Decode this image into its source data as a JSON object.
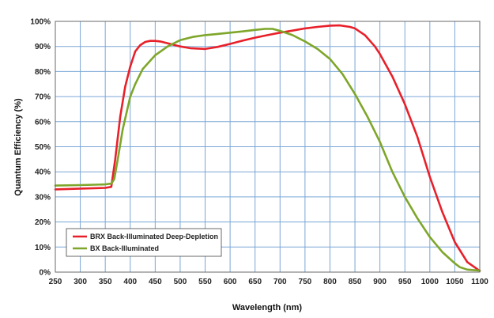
{
  "chart_data": {
    "type": "line",
    "title": "",
    "xlabel": "Wavelength (nm)",
    "ylabel": "Quantum Efficiency (%)",
    "xlim": [
      250,
      1100
    ],
    "ylim": [
      0,
      100
    ],
    "x_ticks": [
      250,
      300,
      350,
      400,
      450,
      500,
      550,
      600,
      650,
      700,
      750,
      800,
      850,
      900,
      950,
      1000,
      1050,
      1100
    ],
    "y_ticks": [
      0,
      10,
      20,
      30,
      40,
      50,
      60,
      70,
      80,
      90,
      100
    ],
    "y_tick_labels": [
      "0%",
      "10%",
      "20%",
      "30%",
      "40%",
      "50%",
      "60%",
      "70%",
      "80%",
      "90%",
      "100%"
    ],
    "grid": "vertical lines at every x tick; horizontal lines at every y tick",
    "legend_position": "bottom-left",
    "series": [
      {
        "name": "BRX Back-Illuminated Deep-Depletion",
        "color": "#e8202a",
        "points": [
          [
            250,
            33
          ],
          [
            300,
            33.3
          ],
          [
            350,
            33.6
          ],
          [
            362,
            34
          ],
          [
            370,
            45
          ],
          [
            380,
            62
          ],
          [
            390,
            74
          ],
          [
            400,
            82
          ],
          [
            410,
            88
          ],
          [
            420,
            90.5
          ],
          [
            430,
            91.8
          ],
          [
            440,
            92.2
          ],
          [
            450,
            92.2
          ],
          [
            460,
            92
          ],
          [
            480,
            91
          ],
          [
            500,
            90
          ],
          [
            520,
            89.3
          ],
          [
            550,
            89
          ],
          [
            575,
            89.8
          ],
          [
            600,
            91
          ],
          [
            625,
            92.3
          ],
          [
            650,
            93.5
          ],
          [
            675,
            94.5
          ],
          [
            700,
            95.5
          ],
          [
            725,
            96.3
          ],
          [
            750,
            97.2
          ],
          [
            775,
            97.8
          ],
          [
            800,
            98.3
          ],
          [
            820,
            98.4
          ],
          [
            840,
            97.8
          ],
          [
            850,
            97.2
          ],
          [
            870,
            94.5
          ],
          [
            890,
            90
          ],
          [
            900,
            87
          ],
          [
            925,
            78
          ],
          [
            950,
            67
          ],
          [
            975,
            54
          ],
          [
            1000,
            38
          ],
          [
            1025,
            24
          ],
          [
            1050,
            12
          ],
          [
            1075,
            4
          ],
          [
            1100,
            0.5
          ]
        ]
      },
      {
        "name": "BX Back-Illuminated",
        "color": "#7ea62a",
        "points": [
          [
            250,
            34.5
          ],
          [
            300,
            34.7
          ],
          [
            350,
            35
          ],
          [
            362,
            35.3
          ],
          [
            368,
            37
          ],
          [
            375,
            45
          ],
          [
            385,
            57
          ],
          [
            400,
            70
          ],
          [
            410,
            75
          ],
          [
            425,
            81
          ],
          [
            450,
            86.5
          ],
          [
            475,
            90
          ],
          [
            500,
            92.5
          ],
          [
            525,
            93.8
          ],
          [
            550,
            94.5
          ],
          [
            575,
            95
          ],
          [
            600,
            95.5
          ],
          [
            625,
            96
          ],
          [
            650,
            96.6
          ],
          [
            670,
            97
          ],
          [
            685,
            97
          ],
          [
            700,
            96.2
          ],
          [
            725,
            94.5
          ],
          [
            750,
            92
          ],
          [
            775,
            89
          ],
          [
            800,
            85
          ],
          [
            825,
            79
          ],
          [
            850,
            71
          ],
          [
            875,
            62
          ],
          [
            900,
            52
          ],
          [
            925,
            40
          ],
          [
            950,
            30
          ],
          [
            975,
            21.5
          ],
          [
            1000,
            14
          ],
          [
            1025,
            8
          ],
          [
            1050,
            3.5
          ],
          [
            1060,
            2
          ],
          [
            1075,
            1
          ],
          [
            1100,
            0.6
          ]
        ]
      }
    ]
  }
}
